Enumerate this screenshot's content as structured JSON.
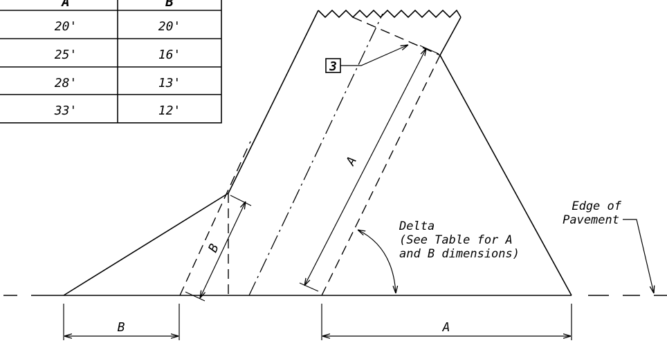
{
  "table": {
    "headers": [
      "A",
      "B"
    ],
    "rows": [
      {
        "a": "20'",
        "b": "20'"
      },
      {
        "a": "25'",
        "b": "16'"
      },
      {
        "a": "28'",
        "b": "13'"
      },
      {
        "a": "33'",
        "b": "12'"
      }
    ]
  },
  "labels": {
    "callout_number": "3",
    "dim_a_diag": "A",
    "dim_b_diag": "B",
    "dim_a_bottom": "A",
    "dim_b_bottom": "B",
    "delta_line1": "Delta",
    "delta_line2": "(See Table for A",
    "delta_line3": "and B dimensions)",
    "edge_line1": "Edge of",
    "edge_line2": "Pavement"
  }
}
